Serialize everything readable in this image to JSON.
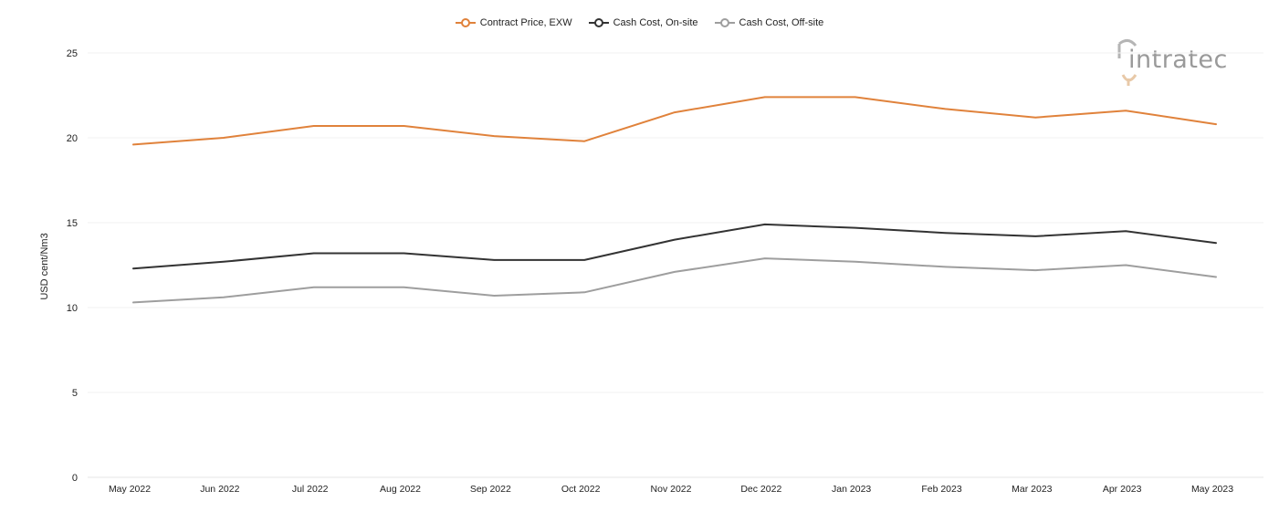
{
  "legend": {
    "items": [
      {
        "label": "Contract Price, EXW",
        "color": "#e0823b"
      },
      {
        "label": "Cash Cost, On-site",
        "color": "#333333"
      },
      {
        "label": "Cash Cost, Off-site",
        "color": "#9e9e9e"
      }
    ]
  },
  "logo": {
    "text": "intratec"
  },
  "chart_data": {
    "type": "line",
    "title": "",
    "xlabel": "",
    "ylabel": "USD cent/Nm3",
    "ylim": [
      0,
      25
    ],
    "yticks": [
      0,
      5,
      10,
      15,
      20,
      25
    ],
    "grid": true,
    "legend_position": "top-center",
    "categories": [
      "May 2022",
      "Jun 2022",
      "Jul 2022",
      "Aug 2022",
      "Sep 2022",
      "Oct 2022",
      "Nov 2022",
      "Dec 2022",
      "Jan 2023",
      "Feb 2023",
      "Mar 2023",
      "Apr 2023",
      "May 2023"
    ],
    "series": [
      {
        "name": "Contract Price, EXW",
        "color": "#e0823b",
        "values": [
          19.6,
          20.0,
          20.7,
          20.7,
          20.1,
          19.8,
          21.5,
          22.4,
          22.4,
          21.7,
          21.2,
          21.6,
          20.8
        ]
      },
      {
        "name": "Cash Cost, On-site",
        "color": "#333333",
        "values": [
          12.3,
          12.7,
          13.2,
          13.2,
          12.8,
          12.8,
          14.0,
          14.9,
          14.7,
          14.4,
          14.2,
          14.5,
          13.8
        ]
      },
      {
        "name": "Cash Cost, Off-site",
        "color": "#9e9e9e",
        "values": [
          10.3,
          10.6,
          11.2,
          11.2,
          10.7,
          10.9,
          12.1,
          12.9,
          12.7,
          12.4,
          12.2,
          12.5,
          11.8
        ]
      }
    ]
  }
}
